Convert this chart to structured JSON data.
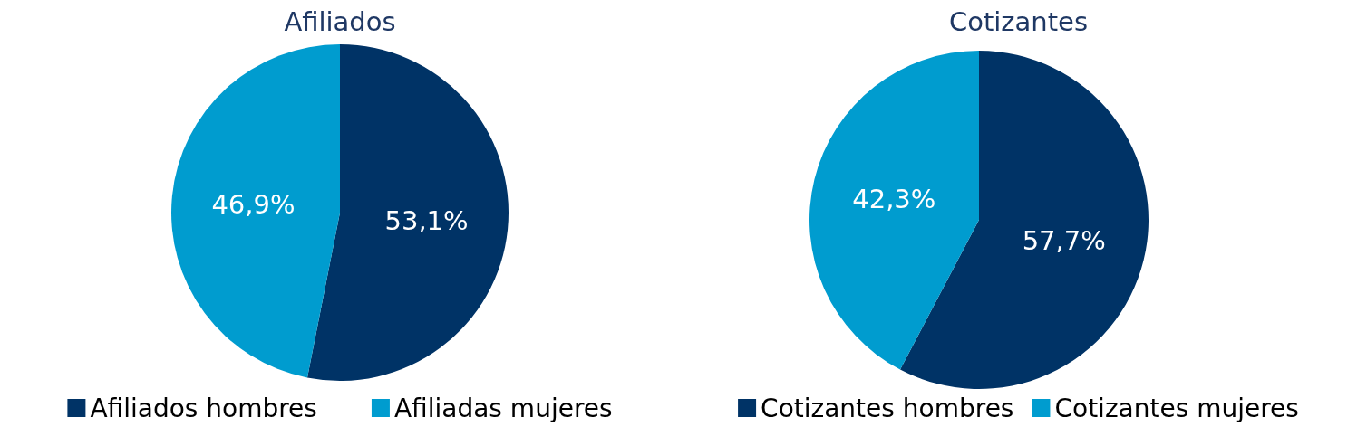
{
  "chart_data": [
    {
      "type": "pie",
      "title": "Afiliados",
      "categories": [
        "Afiliados hombres",
        "Afiliadas mujeres"
      ],
      "values": [
        53.1,
        46.9
      ],
      "value_labels": [
        "53,1%",
        "46,9%"
      ],
      "colors": [
        "#003366",
        "#009ccf"
      ],
      "legend": "bottom"
    },
    {
      "type": "pie",
      "title": "Cotizantes",
      "categories": [
        "Cotizantes hombres",
        "Cotizantes mujeres"
      ],
      "values": [
        57.7,
        42.3
      ],
      "value_labels": [
        "57,7%",
        "42,3%"
      ],
      "colors": [
        "#003366",
        "#009ccf"
      ],
      "legend": "bottom"
    }
  ]
}
